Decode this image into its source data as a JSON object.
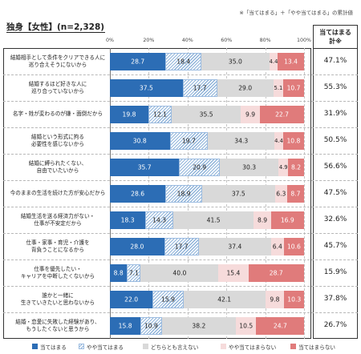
{
  "note": "※「当てはまる」＋「やや当てはまる」の累計値",
  "title": "独身【女性】(n=2,328)",
  "sum_header": [
    "当てはまる",
    "計※"
  ],
  "chart_data": {
    "type": "bar",
    "orientation": "horizontal",
    "stacked": true,
    "xlim": [
      0,
      100
    ],
    "x_ticks": [
      "0%",
      "20%",
      "40%",
      "60%",
      "80%",
      "100%"
    ],
    "categories": [
      "結婚相手として条件をクリアできる人に\n巡り合えそうにないから",
      "結婚するほど好きな人に\n巡り合っていないから",
      "名字・姓が変わるのが嫌・面倒だから",
      "結婚という形式に拘る\n必要性を感じないから",
      "結婚に縛られたくない、\n自由でいたいから",
      "今のままの生活を続けた方が安心だから",
      "結婚生活を送る経済力がない・\n仕事が不安定だから",
      "仕事・家事・育児・介護を\n背負うことになるから",
      "仕事を優先したい・\nキャリアを中断したくないから",
      "誰かと一緒に\n生きていきたいと思わないから",
      "結婚・恋愛に失敗した経験があり、\nもうしたくないと思うから"
    ],
    "series": [
      {
        "name": "当てはまる",
        "color": "#2c6db5",
        "values": [
          28.7,
          37.5,
          19.8,
          30.8,
          35.7,
          28.6,
          18.3,
          28.0,
          8.8,
          22.0,
          15.8
        ]
      },
      {
        "name": "やや当てはまる",
        "color": "#8fb3d9",
        "values": [
          18.4,
          17.7,
          12.1,
          19.7,
          20.9,
          18.9,
          14.3,
          17.7,
          7.1,
          15.9,
          10.9
        ]
      },
      {
        "name": "どちらとも言えない",
        "color": "#d9d9d9",
        "values": [
          35.0,
          29.0,
          35.5,
          34.3,
          30.3,
          37.5,
          41.5,
          37.4,
          40.0,
          42.1,
          38.2
        ]
      },
      {
        "name": "やや当てはまらない",
        "color": "#f6dbdb",
        "values": [
          4.4,
          5.1,
          9.9,
          4.4,
          4.9,
          6.3,
          8.9,
          6.4,
          15.4,
          9.8,
          10.5
        ]
      },
      {
        "name": "当てはまらない",
        "color": "#e07b7b",
        "values": [
          13.4,
          10.7,
          22.7,
          10.8,
          8.2,
          8.7,
          16.9,
          10.6,
          28.7,
          10.3,
          24.7
        ]
      }
    ],
    "cumulative_labels": [
      "47.1%",
      "55.3%",
      "31.9%",
      "50.5%",
      "56.6%",
      "47.5%",
      "32.6%",
      "45.7%",
      "15.9%",
      "37.8%",
      "26.7%"
    ]
  }
}
